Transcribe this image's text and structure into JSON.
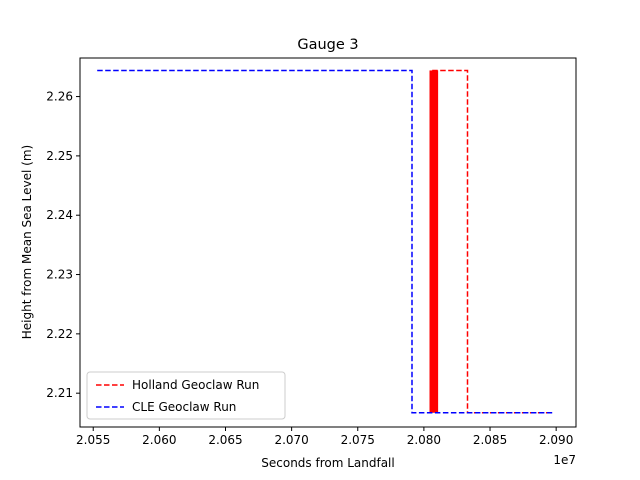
{
  "chart_data": {
    "type": "line",
    "title": "Gauge 3",
    "xlabel": "Seconds from Landfall",
    "ylabel": "Height from Mean Sea Level (m)",
    "x_offset_label": "1e7",
    "xlim": [
      2.054,
      2.0915
    ],
    "ylim": [
      2.2043,
      2.2665
    ],
    "x_ticks": [
      2.055,
      2.06,
      2.065,
      2.07,
      2.075,
      2.08,
      2.085,
      2.09
    ],
    "x_tick_labels": [
      "2.055",
      "2.060",
      "2.065",
      "2.070",
      "2.075",
      "2.080",
      "2.085",
      "2.090"
    ],
    "y_ticks": [
      2.21,
      2.22,
      2.23,
      2.24,
      2.25,
      2.26
    ],
    "y_tick_labels": [
      "2.21",
      "2.22",
      "2.23",
      "2.24",
      "2.25",
      "2.26"
    ],
    "grid": false,
    "legend_position": "lower-left",
    "series": [
      {
        "name": "Holland Geoclaw Run",
        "color": "#ff0000",
        "style": "dashed",
        "x": [
          2.0805,
          2.0805,
          2.0833,
          2.0833,
          2.0897
        ],
        "y": [
          2.2067,
          2.2644,
          2.2644,
          2.2067,
          2.2067
        ]
      },
      {
        "name": "CLE Geoclaw Run",
        "color": "#0000ff",
        "style": "dashed",
        "x": [
          2.0553,
          2.0791,
          2.0791,
          2.0897
        ],
        "y": [
          2.2644,
          2.2644,
          2.2067,
          2.2067
        ]
      }
    ],
    "dense_band": {
      "color": "#ff0000",
      "x_range": [
        2.0805,
        2.081
      ],
      "y_range": [
        2.2067,
        2.2644
      ]
    }
  }
}
